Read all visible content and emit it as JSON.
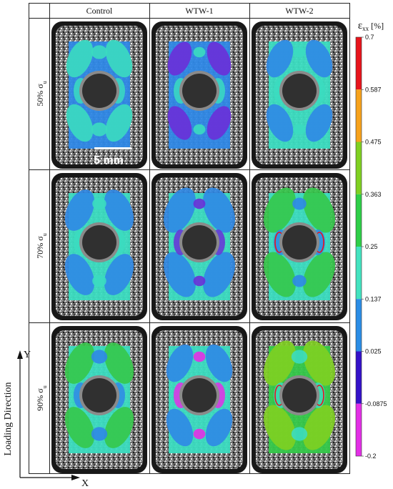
{
  "columns": [
    "Control",
    "WTW-1",
    "WTW-2"
  ],
  "rows": [
    {
      "base": "50% σ",
      "sub": "u"
    },
    {
      "base": "70% σ",
      "sub": "u"
    },
    {
      "base": "90% σ",
      "sub": "u"
    }
  ],
  "colorbar": {
    "title_symbol": "ε",
    "title_sub": "xx",
    "title_unit": "[%]",
    "ticks": [
      "0.7",
      "0.587",
      "0.475",
      "0.363",
      "0.25",
      "0.137",
      "0.025",
      "-0.0875",
      "-0.2"
    ],
    "colors": [
      "#e8141c",
      "#f7a21b",
      "#7fd021",
      "#2ecf48",
      "#43e3c0",
      "#2b8de6",
      "#3412c9",
      "#e32fe6"
    ]
  },
  "scale_bar": {
    "label": "5 mm"
  },
  "axes": {
    "x_label": "X",
    "y_label": "Y",
    "direction_label": "Loading Direction"
  },
  "panels": [
    {
      "bg": "#2f88e6",
      "spots": [
        {
          "c": "#3bdcc0",
          "s": 1.0
        },
        {
          "c": "#3bdcc0",
          "s": 0.8
        }
      ],
      "ring": ""
    },
    {
      "bg": "#2f88e6",
      "spots": [
        {
          "c": "#6a2fd8",
          "s": 0.9
        },
        {
          "c": "#3bdcc0",
          "s": 0.6
        }
      ],
      "ring": ""
    },
    {
      "bg": "#3bdcc0",
      "spots": [
        {
          "c": "#2f88e6",
          "s": 1.0
        },
        {
          "c": "#3bdcc0",
          "s": 0.6
        }
      ],
      "ring": ""
    },
    {
      "bg": "#3bdcc0",
      "spots": [
        {
          "c": "#2f88e6",
          "s": 1.1
        },
        {
          "c": "#3bdcc0",
          "s": 0.7
        }
      ],
      "ring": ""
    },
    {
      "bg": "#3bdcc0",
      "spots": [
        {
          "c": "#2f88e6",
          "s": 1.2
        },
        {
          "c": "#6a2fd8",
          "s": 0.6
        }
      ],
      "ring": ""
    },
    {
      "bg": "#3bdcc0",
      "spots": [
        {
          "c": "#35c84a",
          "s": 1.2
        },
        {
          "c": "#2f88e6",
          "s": 0.7
        }
      ],
      "ring": "#e8141c"
    },
    {
      "bg": "#3bdcc0",
      "spots": [
        {
          "c": "#35c84a",
          "s": 1.1
        },
        {
          "c": "#2f88e6",
          "s": 0.8
        }
      ],
      "ring": ""
    },
    {
      "bg": "#3bdcc0",
      "spots": [
        {
          "c": "#2f88e6",
          "s": 1.0
        },
        {
          "c": "#e32fe6",
          "s": 0.6
        }
      ],
      "ring": ""
    },
    {
      "bg": "#35c84a",
      "spots": [
        {
          "c": "#7fd021",
          "s": 1.2
        },
        {
          "c": "#3bdcc0",
          "s": 0.8
        }
      ],
      "ring": "#e8141c"
    }
  ]
}
